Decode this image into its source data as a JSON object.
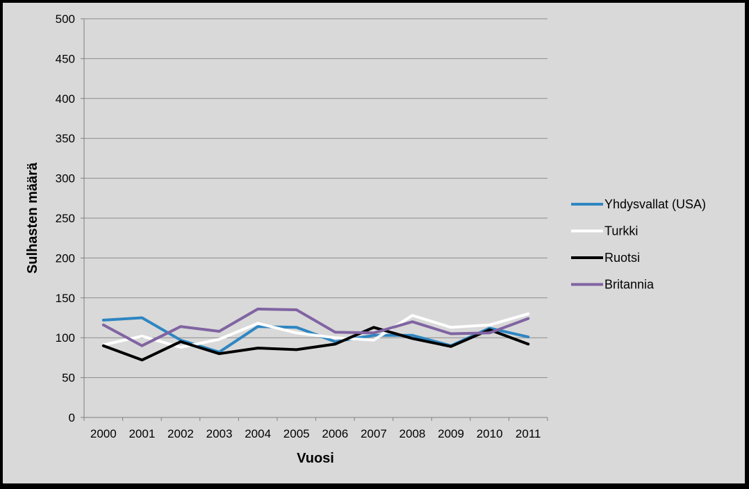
{
  "chart_data": {
    "type": "line",
    "xlabel": "Vuosi",
    "ylabel": "Sulhasten määrä",
    "ylim": [
      0,
      500
    ],
    "yticks": [
      0,
      50,
      100,
      150,
      200,
      250,
      300,
      350,
      400,
      450,
      500
    ],
    "categories": [
      "2000",
      "2001",
      "2002",
      "2003",
      "2004",
      "2005",
      "2006",
      "2007",
      "2008",
      "2009",
      "2010",
      "2011"
    ],
    "grid": "horizontal",
    "legend_position": "right",
    "background_color": "#d9d9d9",
    "series": [
      {
        "name": "Yhdysvallat (USA)",
        "color": "#2e86c1",
        "values": [
          122,
          125,
          97,
          82,
          114,
          113,
          95,
          103,
          103,
          90,
          112,
          101
        ]
      },
      {
        "name": "Turkki",
        "color": "#ffffff",
        "values": [
          91,
          102,
          88,
          98,
          118,
          106,
          100,
          97,
          128,
          113,
          116,
          130
        ]
      },
      {
        "name": "Ruotsi",
        "color": "#000000",
        "values": [
          90,
          72,
          95,
          80,
          87,
          85,
          92,
          113,
          99,
          89,
          110,
          92
        ]
      },
      {
        "name": "Britannia",
        "color": "#8064a2",
        "values": [
          116,
          90,
          114,
          108,
          136,
          135,
          107,
          106,
          120,
          105,
          106,
          124
        ]
      }
    ]
  }
}
